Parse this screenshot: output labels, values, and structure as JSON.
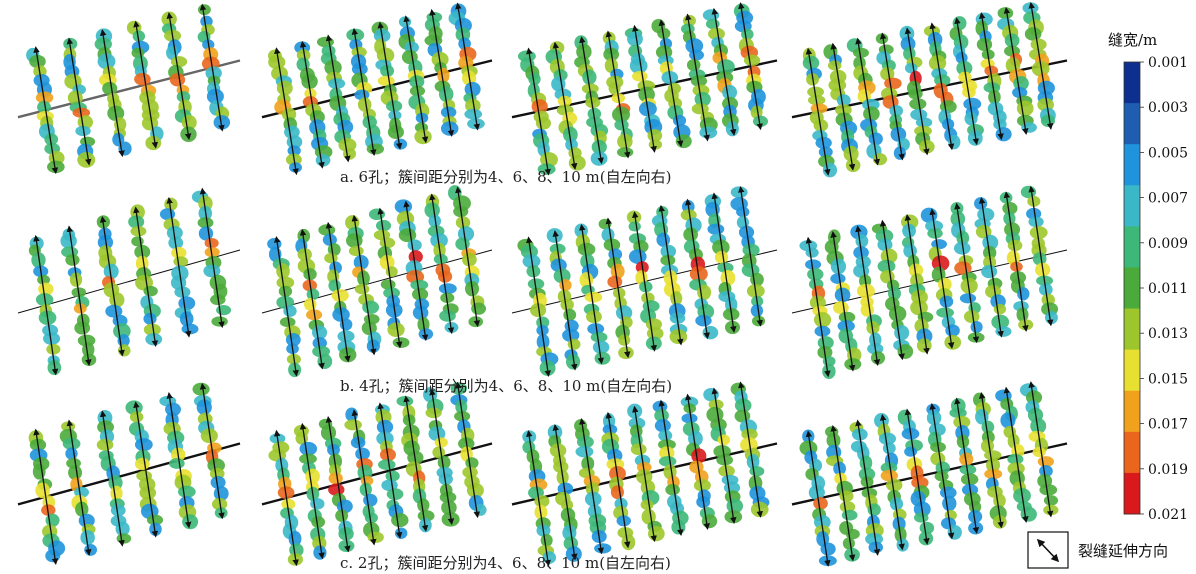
{
  "captions": [
    "a. 6孔；簇间距分别为4、6、8、10 m(自左向右)",
    "b. 4孔；簇间距分别为4、6、8、10 m(自左向右)",
    "c. 2孔；簇间距分别为4、6、8、10 m(自左向右)"
  ],
  "rows": [
    {
      "holes": 6,
      "spacings_m": [
        4,
        6,
        8,
        10
      ]
    },
    {
      "holes": 4,
      "spacings_m": [
        4,
        6,
        8,
        10
      ]
    },
    {
      "holes": 2,
      "spacings_m": [
        4,
        6,
        8,
        10
      ]
    }
  ],
  "colorbar": {
    "title": "缝宽/m",
    "ticks": [
      "0.001",
      "0.003",
      "0.005",
      "0.007",
      "0.009",
      "0.011",
      "0.013",
      "0.015",
      "0.017",
      "0.019",
      "0.021"
    ],
    "colors": [
      "#0d2f8f",
      "#1f5db0",
      "#1f94dc",
      "#3bb8c8",
      "#3cb878",
      "#4bab3a",
      "#9cc62b",
      "#e8e030",
      "#f1a21c",
      "#e9661c",
      "#d9191c"
    ]
  },
  "legend": {
    "label": "裂缝延伸方向",
    "icon": "double-arrow-icon"
  }
}
